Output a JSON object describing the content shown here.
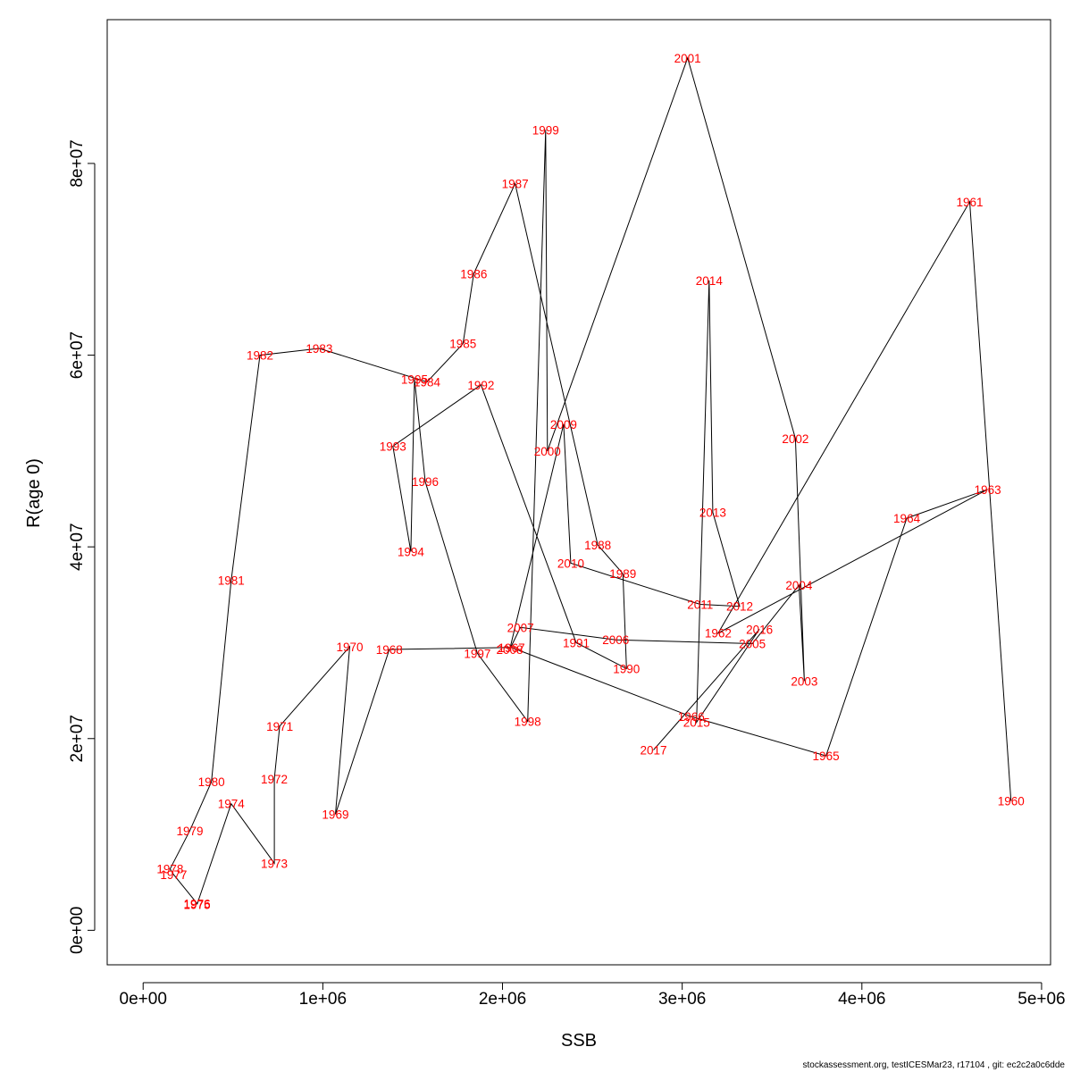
{
  "chart_data": {
    "type": "line",
    "xlabel": "SSB",
    "ylabel": "R(age 0)",
    "xlim": [
      -200000,
      5050000
    ],
    "ylim": [
      -3600000,
      95000000
    ],
    "x_ticks": [
      0,
      1000000,
      2000000,
      3000000,
      4000000,
      5000000
    ],
    "x_tick_labels": [
      "0e+00",
      "1e+06",
      "2e+06",
      "3e+06",
      "4e+06",
      "5e+06"
    ],
    "y_ticks": [
      0,
      20000000,
      40000000,
      60000000,
      80000000
    ],
    "y_tick_labels": [
      "0e+00",
      "2e+07",
      "4e+07",
      "6e+07",
      "8e+07"
    ],
    "grid": false,
    "line_color": "#000000",
    "label_color": "#ff0000",
    "series": [
      {
        "points": [
          {
            "year": "1960",
            "x": 4830000,
            "y": 13500000
          },
          {
            "year": "1961",
            "x": 4600000,
            "y": 76000000
          },
          {
            "year": "1962",
            "x": 3200000,
            "y": 31000000
          },
          {
            "year": "1963",
            "x": 4700000,
            "y": 46000000
          },
          {
            "year": "1964",
            "x": 4250000,
            "y": 43000000
          },
          {
            "year": "1965",
            "x": 3800000,
            "y": 18200000
          },
          {
            "year": "1966",
            "x": 3050000,
            "y": 22300000
          },
          {
            "year": "1967",
            "x": 2050000,
            "y": 29500000
          },
          {
            "year": "1968",
            "x": 1370000,
            "y": 29300000
          },
          {
            "year": "1969",
            "x": 1070000,
            "y": 12100000
          },
          {
            "year": "1970",
            "x": 1150000,
            "y": 29600000
          },
          {
            "year": "1971",
            "x": 760000,
            "y": 21300000
          },
          {
            "year": "1972",
            "x": 730000,
            "y": 15800000
          },
          {
            "year": "1973",
            "x": 730000,
            "y": 7000000
          },
          {
            "year": "1974",
            "x": 490000,
            "y": 13200000
          },
          {
            "year": "1975",
            "x": 300000,
            "y": 2700000
          },
          {
            "year": "1976",
            "x": 300000,
            "y": 2800000
          },
          {
            "year": "1977",
            "x": 170000,
            "y": 5800000
          },
          {
            "year": "1978",
            "x": 150000,
            "y": 6400000
          },
          {
            "year": "1979",
            "x": 260000,
            "y": 10400000
          },
          {
            "year": "1980",
            "x": 380000,
            "y": 15500000
          },
          {
            "year": "1981",
            "x": 490000,
            "y": 36500000
          },
          {
            "year": "1982",
            "x": 650000,
            "y": 60000000
          },
          {
            "year": "1983",
            "x": 980000,
            "y": 60700000
          },
          {
            "year": "1984",
            "x": 1580000,
            "y": 57200000
          },
          {
            "year": "1985",
            "x": 1780000,
            "y": 61200000
          },
          {
            "year": "1986",
            "x": 1840000,
            "y": 68500000
          },
          {
            "year": "1987",
            "x": 2070000,
            "y": 77900000
          },
          {
            "year": "1988",
            "x": 2530000,
            "y": 40200000
          },
          {
            "year": "1989",
            "x": 2670000,
            "y": 37200000
          },
          {
            "year": "1990",
            "x": 2690000,
            "y": 27300000
          },
          {
            "year": "1991",
            "x": 2410000,
            "y": 30000000
          },
          {
            "year": "1992",
            "x": 1880000,
            "y": 56900000
          },
          {
            "year": "1993",
            "x": 1390000,
            "y": 50500000
          },
          {
            "year": "1994",
            "x": 1490000,
            "y": 39500000
          },
          {
            "year": "1995",
            "x": 1510000,
            "y": 57500000
          },
          {
            "year": "1996",
            "x": 1570000,
            "y": 46800000
          },
          {
            "year": "1997",
            "x": 1860000,
            "y": 28900000
          },
          {
            "year": "1998",
            "x": 2140000,
            "y": 21800000
          },
          {
            "year": "1999",
            "x": 2240000,
            "y": 83500000
          },
          {
            "year": "2000",
            "x": 2250000,
            "y": 50000000
          },
          {
            "year": "2001",
            "x": 3030000,
            "y": 91000000
          },
          {
            "year": "2002",
            "x": 3630000,
            "y": 51300000
          },
          {
            "year": "2003",
            "x": 3680000,
            "y": 26000000
          },
          {
            "year": "2004",
            "x": 3650000,
            "y": 36000000
          },
          {
            "year": "2005",
            "x": 3390000,
            "y": 29900000
          },
          {
            "year": "2006",
            "x": 2630000,
            "y": 30300000
          },
          {
            "year": "2007",
            "x": 2100000,
            "y": 31600000
          },
          {
            "year": "2008",
            "x": 2040000,
            "y": 29300000
          },
          {
            "year": "2009",
            "x": 2340000,
            "y": 52800000
          },
          {
            "year": "2010",
            "x": 2380000,
            "y": 38300000
          },
          {
            "year": "2011",
            "x": 3100000,
            "y": 34000000
          },
          {
            "year": "2012",
            "x": 3320000,
            "y": 33800000
          },
          {
            "year": "2013",
            "x": 3170000,
            "y": 43600000
          },
          {
            "year": "2014",
            "x": 3150000,
            "y": 67800000
          },
          {
            "year": "2015",
            "x": 3080000,
            "y": 21700000
          },
          {
            "year": "2016",
            "x": 3430000,
            "y": 31400000
          },
          {
            "year": "2017",
            "x": 2840000,
            "y": 18800000
          }
        ]
      }
    ]
  },
  "footer": {
    "credit": "stockassessment.org, testICESMar23, r17104 , git: ec2c2a0c6dde"
  }
}
